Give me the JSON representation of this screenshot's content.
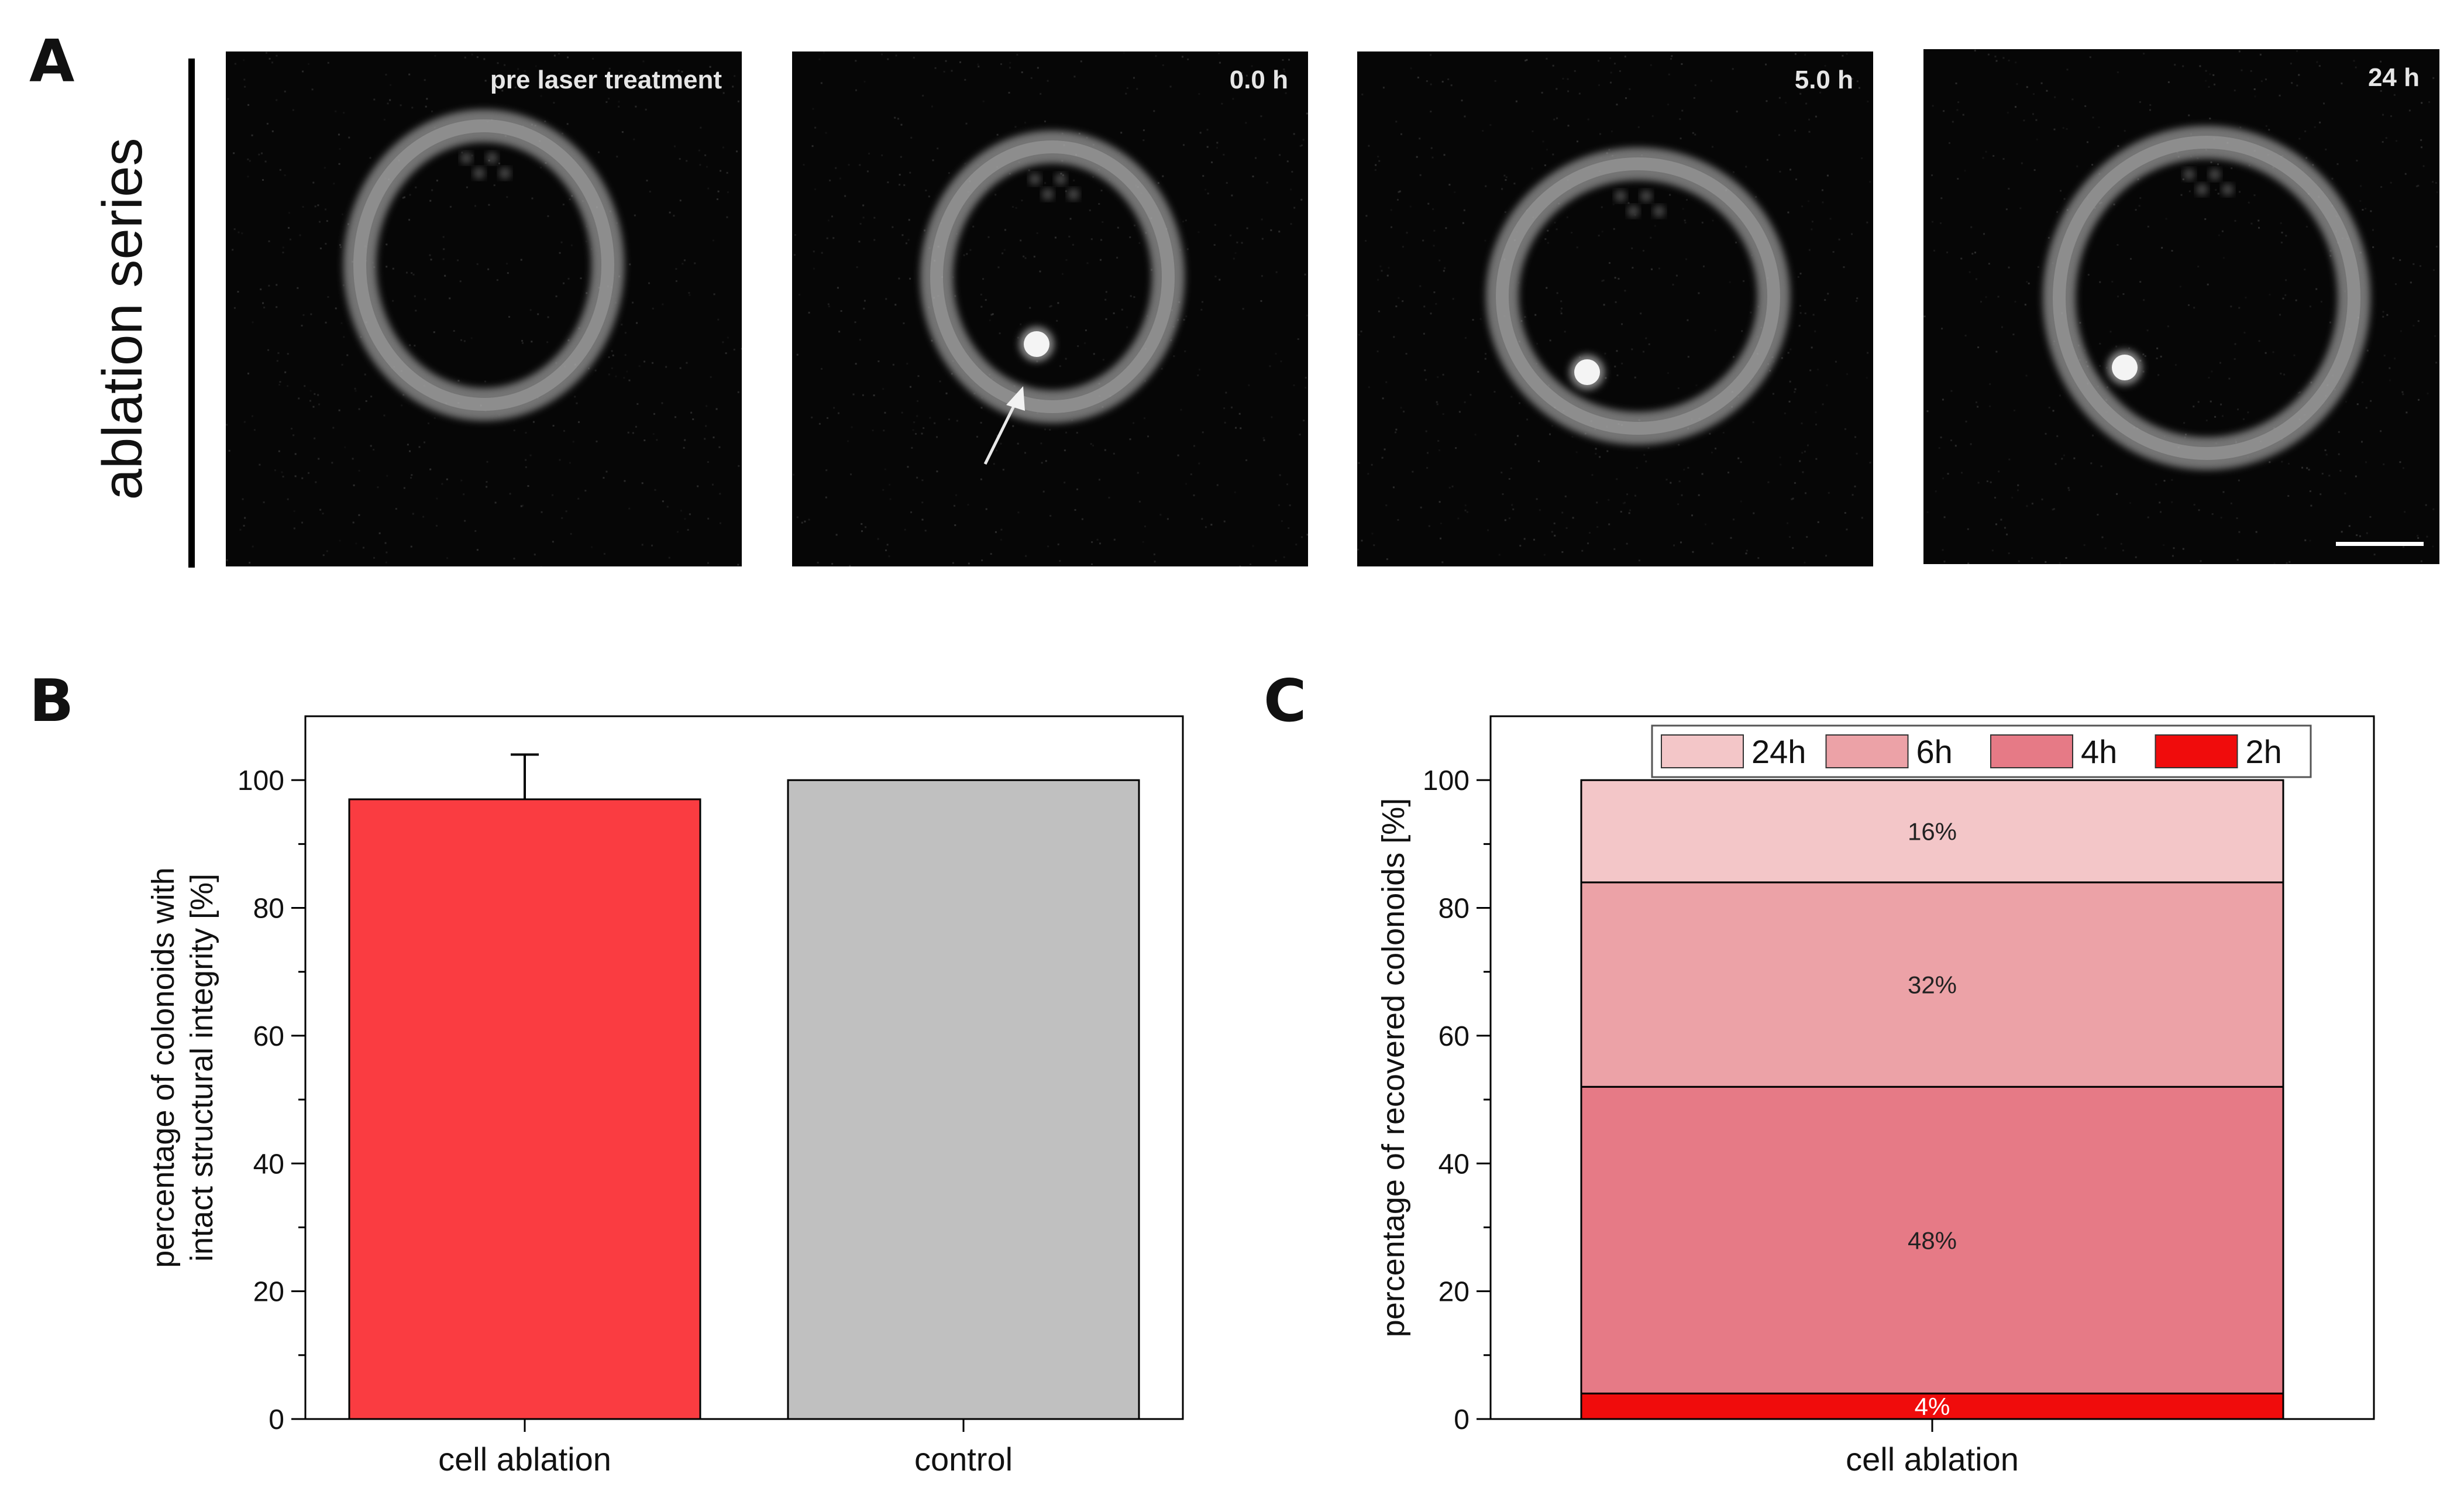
{
  "panels": {
    "a_letter": "A",
    "b_letter": "B",
    "c_letter": "C"
  },
  "ablation": {
    "row_label": "ablation series",
    "images": [
      {
        "label": "pre laser treatment",
        "marker": false,
        "arrow": false
      },
      {
        "label": "0.0 h",
        "marker": true,
        "arrow": true
      },
      {
        "label": "5.0 h",
        "marker": true,
        "arrow": false
      },
      {
        "label": "24 h",
        "marker": true,
        "arrow": false,
        "scale_bar": true
      }
    ]
  },
  "chart_data": [
    {
      "type": "bar",
      "categories": [
        "cell ablation",
        "control"
      ],
      "values": [
        97,
        100
      ],
      "error_upper": [
        7,
        0
      ],
      "colors": [
        "#fa3c41",
        "#c0c0c0"
      ],
      "ylabel_lines": [
        "percentage of colonoids with",
        "intact structural integrity [%]"
      ],
      "ylim": [
        0,
        110
      ],
      "yticks": [
        0,
        20,
        40,
        60,
        80,
        100
      ],
      "grid": false
    },
    {
      "type": "bar",
      "stacked": true,
      "categories": [
        "cell ablation"
      ],
      "series": [
        {
          "name": "2h",
          "values": [
            4
          ],
          "label": "4%",
          "color": "#f00c0c",
          "label_color": "#ffffff"
        },
        {
          "name": "4h",
          "values": [
            48
          ],
          "label": "48%",
          "color": "#e67a86",
          "label_color": "#222222"
        },
        {
          "name": "6h",
          "values": [
            32
          ],
          "label": "32%",
          "color": "#eca2a7",
          "label_color": "#222222"
        },
        {
          "name": "24h",
          "values": [
            16
          ],
          "label": "16%",
          "color": "#f3c6c8",
          "label_color": "#222222"
        }
      ],
      "legend_order": [
        "24h",
        "6h",
        "4h",
        "2h"
      ],
      "legend_position": "top",
      "ylabel": "percentage of recovered colonoids [%]",
      "ylim": [
        0,
        110
      ],
      "yticks": [
        0,
        20,
        40,
        60,
        80,
        100
      ],
      "grid": false
    }
  ]
}
